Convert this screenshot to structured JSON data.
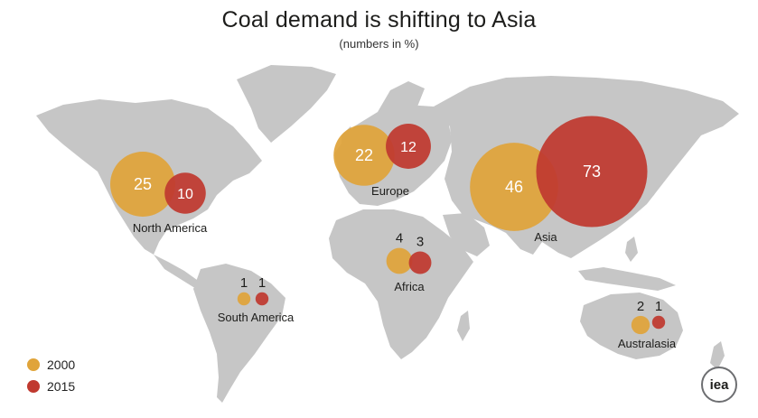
{
  "title": "Coal demand is shifting to Asia",
  "subtitle": "(numbers in %)",
  "legend": [
    {
      "label": "2000",
      "color": "#e0a43a"
    },
    {
      "label": "2015",
      "color": "#c0392f"
    }
  ],
  "colors": {
    "land": "#c6c6c6",
    "y2000": "#e0a43a",
    "y2015": "#c0392f"
  },
  "regions": [
    {
      "name": "North America",
      "v2000": 25,
      "v2015": 10
    },
    {
      "name": "Europe",
      "v2000": 22,
      "v2015": 12
    },
    {
      "name": "Asia",
      "v2000": 46,
      "v2015": 73
    },
    {
      "name": "Africa",
      "v2000": 4,
      "v2015": 3
    },
    {
      "name": "South America",
      "v2000": 1,
      "v2015": 1
    },
    {
      "name": "Australasia",
      "v2000": 2,
      "v2015": 1
    }
  ],
  "logo_text": "iea"
}
